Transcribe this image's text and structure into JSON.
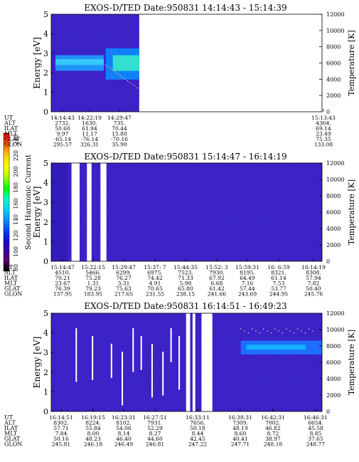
{
  "colorbar": {
    "label": "Second Harmonic Current",
    "ticks": [
      "240",
      "220",
      "200",
      "180",
      "160",
      "140",
      "120",
      "100",
      "80"
    ],
    "colors": [
      "#ff0000",
      "#ff6600",
      "#ffcc00",
      "#ffff00",
      "#a0ff00",
      "#00ff00",
      "#00ffcc",
      "#00ccff",
      "#0088ff",
      "#0033ff",
      "#2000cc",
      "#3c0099",
      "#5a0070",
      "#000000"
    ]
  },
  "panels": [
    {
      "title": "EXOS-D/TED   Date:950831   14:14:43 - 15:14:39",
      "ylabel": "Energy [eV]",
      "ytick_labels": [
        "0",
        "1",
        "2",
        "3",
        "4",
        "5"
      ],
      "right_label": "Temperature [K]",
      "right_tick_labels": [
        "0",
        "2000",
        "4000",
        "6000",
        "8000",
        "10000",
        "12000"
      ],
      "row_labels": [
        "UT",
        "ALT",
        "ILAT",
        "MLT",
        "GLAT",
        "GLON"
      ],
      "columns": [
        {
          "values": [
            "14:14:43",
            "2732.",
            "50.60",
            "9.97",
            "-65.14",
            "295.57"
          ]
        },
        {
          "values": [
            "14:22:19",
            "1630.",
            "61.94",
            "11.17",
            "-76.14",
            "326.31"
          ]
        },
        {
          "values": [
            "14:29:47",
            "735.",
            "70.44",
            "15.80",
            "-70.16",
            "35.90"
          ]
        },
        {
          "values": [
            "15:13:43",
            "4364.",
            "69.14",
            "23.49",
            "75.35",
            "133.08"
          ]
        }
      ]
    },
    {
      "title": "EXOS-D/TED   Date:950831   15:14:47 - 16:14:19",
      "ylabel": "Energy [eV]",
      "ytick_labels": [
        "0",
        "1",
        "2",
        "3",
        "4",
        "5"
      ],
      "right_label": "Temperature [K]",
      "right_tick_labels": [
        "0",
        "2000",
        "4000",
        "6000",
        "8000",
        "10000",
        "12000"
      ],
      "row_labels": [
        "UT",
        "ALT",
        "ILAT",
        "MLT",
        "GLAT",
        "GLON"
      ],
      "columns": [
        {
          "values": [
            "15:14:47",
            "4510.",
            "70.21",
            "23.67",
            "76.39",
            "137.95"
          ]
        },
        {
          "values": [
            "15:22:15",
            "5466.",
            "75.28",
            "1.31",
            "79.23",
            "183.95"
          ]
        },
        {
          "values": [
            "15:29:47",
            "6299.",
            "76.27",
            "3.31",
            "75.63",
            "217.65"
          ]
        },
        {
          "values": [
            "15:37: 7",
            "6975.",
            "74.42",
            "4.91",
            "70.65",
            "231.55"
          ]
        },
        {
          "values": [
            "15:44:35",
            "7523.",
            "71.33",
            "5.98",
            "65.80",
            "238.15"
          ]
        },
        {
          "values": [
            "15:52: 3",
            "7930.",
            "67.92",
            "6.68",
            "61.42",
            "241.66"
          ]
        },
        {
          "values": [
            "15:59:31",
            "8195.",
            "64.49",
            "7.16",
            "57.44",
            "243.69"
          ]
        },
        {
          "values": [
            "16: 6:59",
            "8321.",
            "61.14",
            "7.53",
            "53.77",
            "244.95"
          ]
        },
        {
          "values": [
            "16:14:19",
            "8308.",
            "57.94",
            "7.82",
            "50.40",
            "245.76"
          ]
        }
      ]
    },
    {
      "title": "EXOS-D/TED   Date:950831   16:14:51 - 16:49:23",
      "ylabel": "Energy [eV]",
      "ytick_labels": [
        "0",
        "1",
        "2",
        "3",
        "4",
        "5"
      ],
      "right_label": "Temperature [K]",
      "right_tick_labels": [
        "0",
        "2000",
        "4000",
        "6000",
        "8000",
        "10000",
        "12000"
      ],
      "row_labels": [
        "UT",
        "ALT",
        "ILAT",
        "MLT",
        "GLAT",
        "GLON"
      ],
      "columns": [
        {
          "values": [
            "16:14:51",
            "8302.",
            "57.71",
            "7.84",
            "50.16",
            "245.81"
          ]
        },
        {
          "values": [
            "16:19:15",
            "8224.",
            "55.84",
            "8.00",
            "48.23",
            "246.18"
          ]
        },
        {
          "values": [
            "16:23:31",
            "8102.",
            "54.06",
            "8.14",
            "46.40",
            "246.49"
          ]
        },
        {
          "values": [
            "16:27:51",
            "7931.",
            "52.29",
            "8.27",
            "44.60",
            "246.81"
          ]
        },
        {
          "values": [
            "16:33:11",
            "7656.",
            "50.18",
            "8.44",
            "42.45",
            "247.22"
          ]
        },
        {
          "values": [
            "16:38:31",
            "7309.",
            "48.19",
            "8.60",
            "40.41",
            "247.71"
          ]
        },
        {
          "values": [
            "16:42:31",
            "7002.",
            "46.82",
            "8.72",
            "38.97",
            "248.18"
          ]
        },
        {
          "values": [
            "16:46:31",
            "6654.",
            "45.58",
            "8.85",
            "37.65",
            "248.77"
          ]
        }
      ]
    }
  ],
  "chart_data": [
    {
      "type": "heatmap",
      "title": "EXOS-D/TED   Date:950831   14:14:43 - 15:14:39",
      "xlabel": "",
      "ylabel": "Energy [eV]",
      "y2label": "Temperature [K]",
      "ylim": [
        0,
        5
      ],
      "y2lim": [
        0,
        12000
      ],
      "x_ticks": [
        "14:14:43",
        "14:22:19",
        "14:29:47",
        "15:13:43"
      ],
      "data_extent_end": "14:33:00",
      "bands": [
        {
          "from": "14:14:43",
          "to": "14:26:00",
          "energy_center": 2.5,
          "width": 0.5
        },
        {
          "from": "14:26:00",
          "to": "14:33:00",
          "energy_center": 2.3,
          "width": 1.2
        }
      ],
      "colorbar": {
        "label": "Second Harmonic Current",
        "range": [
          80,
          240
        ]
      }
    },
    {
      "type": "heatmap",
      "title": "EXOS-D/TED   Date:950831   15:14:47 - 16:14:19",
      "ylabel": "Energy [eV]",
      "y2label": "Temperature [K]",
      "ylim": [
        0,
        5
      ],
      "y2lim": [
        0,
        12000
      ],
      "x_ticks": [
        "15:14:47",
        "15:22:15",
        "15:29:47",
        "15:37: 7",
        "15:44:35",
        "15:52: 3",
        "15:59:31",
        "16: 6:59",
        "16:14:19"
      ],
      "data_gaps": [
        [
          "15:17:20",
          "15:19:30"
        ],
        [
          "15:20:40",
          "15:21:30"
        ],
        [
          "15:23:10",
          "15:25:00"
        ]
      ]
    },
    {
      "type": "heatmap",
      "title": "EXOS-D/TED   Date:950831   16:14:51 - 16:49:23",
      "ylabel": "Energy [eV]",
      "y2label": "Temperature [K]",
      "ylim": [
        0,
        5
      ],
      "y2lim": [
        0,
        12000
      ],
      "x_ticks": [
        "16:14:51",
        "16:19:15",
        "16:23:31",
        "16:27:51",
        "16:33:11",
        "16:38:31",
        "16:42:31",
        "16:46:31"
      ],
      "data_gaps": [
        [
          "16:30:00",
          "16:31:00"
        ],
        [
          "16:32:10",
          "16:33:00"
        ],
        [
          "16:34:40",
          "16:36:20"
        ]
      ],
      "bands": [
        {
          "from": "16:37:00",
          "to": "16:49:23",
          "energy_center": 3.2,
          "width": 0.8
        }
      ]
    }
  ]
}
